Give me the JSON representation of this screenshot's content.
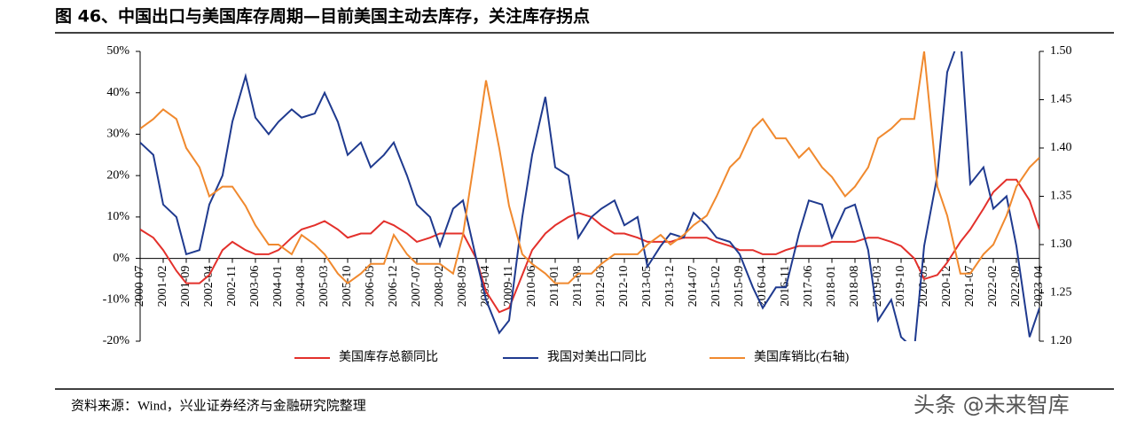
{
  "chart_data": {
    "type": "line",
    "title": "图 46、中国出口与美国库存周期—目前美国主动去库存，关注库存拐点",
    "source": "资料来源：Wind，兴业证券经济与金融研究院整理",
    "watermark": "头条 @未来智库",
    "x": [
      "2000-07",
      "2000-11",
      "2001-02",
      "2001-06",
      "2001-09",
      "2002-01",
      "2002-04",
      "2002-08",
      "2002-11",
      "2003-03",
      "2003-06",
      "2003-10",
      "2004-01",
      "2004-05",
      "2004-08",
      "2004-12",
      "2005-03",
      "2005-07",
      "2005-10",
      "2006-02",
      "2006-05",
      "2006-09",
      "2006-12",
      "2007-04",
      "2007-07",
      "2007-11",
      "2008-02",
      "2008-06",
      "2008-09",
      "2009-01",
      "2009-04",
      "2009-08",
      "2009-11",
      "2010-03",
      "2010-06",
      "2010-10",
      "2011-01",
      "2011-05",
      "2011-08",
      "2011-12",
      "2012-03",
      "2012-07",
      "2012-10",
      "2013-02",
      "2013-05",
      "2013-09",
      "2013-12",
      "2014-04",
      "2014-07",
      "2014-11",
      "2015-02",
      "2015-06",
      "2015-09",
      "2016-01",
      "2016-04",
      "2016-08",
      "2016-11",
      "2017-03",
      "2017-06",
      "2017-10",
      "2018-01",
      "2018-05",
      "2018-08",
      "2018-12",
      "2019-03",
      "2019-07",
      "2019-10",
      "2020-02",
      "2020-05",
      "2020-09",
      "2020-12",
      "2021-04",
      "2021-07",
      "2021-11",
      "2022-02",
      "2022-06",
      "2022-09",
      "2023-01",
      "2023-04"
    ],
    "xticks": [
      "2000-07",
      "2001-02",
      "2001-09",
      "2002-04",
      "2002-11",
      "2003-06",
      "2004-01",
      "2004-08",
      "2005-03",
      "2005-10",
      "2006-05",
      "2006-12",
      "2007-07",
      "2008-02",
      "2008-09",
      "2009-04",
      "2009-11",
      "2010-06",
      "2011-01",
      "2011-08",
      "2012-03",
      "2012-10",
      "2013-05",
      "2013-12",
      "2014-07",
      "2015-02",
      "2015-09",
      "2016-04",
      "2016-11",
      "2017-06",
      "2018-01",
      "2018-08",
      "2019-03",
      "2019-10",
      "2020-05",
      "2020-12",
      "2021-07",
      "2022-02",
      "2022-09",
      "2023-04"
    ],
    "ylim": [
      -20,
      50
    ],
    "yticks": [
      {
        "value": -20,
        "label": "-20%"
      },
      {
        "value": -10,
        "label": "-10%"
      },
      {
        "value": 0,
        "label": "0%"
      },
      {
        "value": 10,
        "label": "10%"
      },
      {
        "value": 20,
        "label": "20%"
      },
      {
        "value": 30,
        "label": "30%"
      },
      {
        "value": 40,
        "label": "40%"
      },
      {
        "value": 50,
        "label": "50%"
      }
    ],
    "y2lim": [
      1.2,
      1.5
    ],
    "y2ticks": [
      {
        "value": 1.2,
        "label": "1.20"
      },
      1.25,
      {
        "value": 1.3,
        "label": "1.30"
      },
      1.35,
      {
        "value": 1.4,
        "label": "1.40"
      },
      1.45,
      {
        "value": 1.5,
        "label": "1.50"
      }
    ],
    "series": [
      {
        "name": "美国库存总额同比",
        "color": "#e3302b",
        "values": [
          7,
          5,
          2,
          -3,
          -6,
          -6,
          -4,
          2,
          4,
          2,
          1,
          1,
          2,
          5,
          7,
          8,
          9,
          7,
          5,
          6,
          6,
          9,
          8,
          6,
          4,
          5,
          6,
          6,
          6,
          0,
          -8,
          -13,
          -12,
          -4,
          2,
          6,
          8,
          10,
          11,
          10,
          8,
          6,
          6,
          5,
          4,
          4,
          4,
          5,
          5,
          5,
          4,
          3,
          2,
          2,
          1,
          1,
          2,
          3,
          3,
          3,
          4,
          4,
          4,
          5,
          5,
          4,
          3,
          0,
          -5,
          -4,
          -1,
          4,
          7,
          12,
          16,
          19,
          19,
          14,
          7
        ]
      },
      {
        "name": "我国对美出口同比",
        "color": "#1f3a8f",
        "values": [
          28,
          25,
          13,
          10,
          1,
          2,
          13,
          20,
          33,
          44,
          34,
          30,
          33,
          36,
          34,
          35,
          40,
          33,
          25,
          28,
          22,
          25,
          28,
          20,
          13,
          10,
          3,
          12,
          14,
          0,
          -10,
          -18,
          -15,
          10,
          25,
          39,
          22,
          20,
          5,
          10,
          12,
          14,
          8,
          10,
          -2,
          3,
          6,
          5,
          11,
          8,
          5,
          4,
          1,
          -7,
          -12,
          -7,
          -7,
          6,
          14,
          13,
          5,
          12,
          13,
          2,
          -15,
          -10,
          -19,
          -22,
          3,
          20,
          45,
          54,
          18,
          22,
          12,
          15,
          3,
          -19,
          -12
        ]
      },
      {
        "name": "美国库销比(右轴)",
        "color": "#f0892e",
        "axis": "y2",
        "values": [
          1.42,
          1.43,
          1.44,
          1.43,
          1.4,
          1.38,
          1.35,
          1.36,
          1.36,
          1.34,
          1.32,
          1.3,
          1.3,
          1.29,
          1.31,
          1.3,
          1.29,
          1.27,
          1.26,
          1.27,
          1.28,
          1.28,
          1.31,
          1.29,
          1.28,
          1.28,
          1.28,
          1.27,
          1.31,
          1.4,
          1.47,
          1.4,
          1.34,
          1.29,
          1.28,
          1.27,
          1.26,
          1.26,
          1.27,
          1.27,
          1.28,
          1.29,
          1.29,
          1.29,
          1.3,
          1.31,
          1.3,
          1.31,
          1.32,
          1.33,
          1.35,
          1.38,
          1.39,
          1.42,
          1.43,
          1.41,
          1.41,
          1.39,
          1.4,
          1.38,
          1.37,
          1.35,
          1.36,
          1.38,
          1.41,
          1.42,
          1.43,
          1.43,
          1.5,
          1.36,
          1.33,
          1.27,
          1.27,
          1.29,
          1.3,
          1.33,
          1.36,
          1.38,
          1.39
        ]
      }
    ]
  }
}
